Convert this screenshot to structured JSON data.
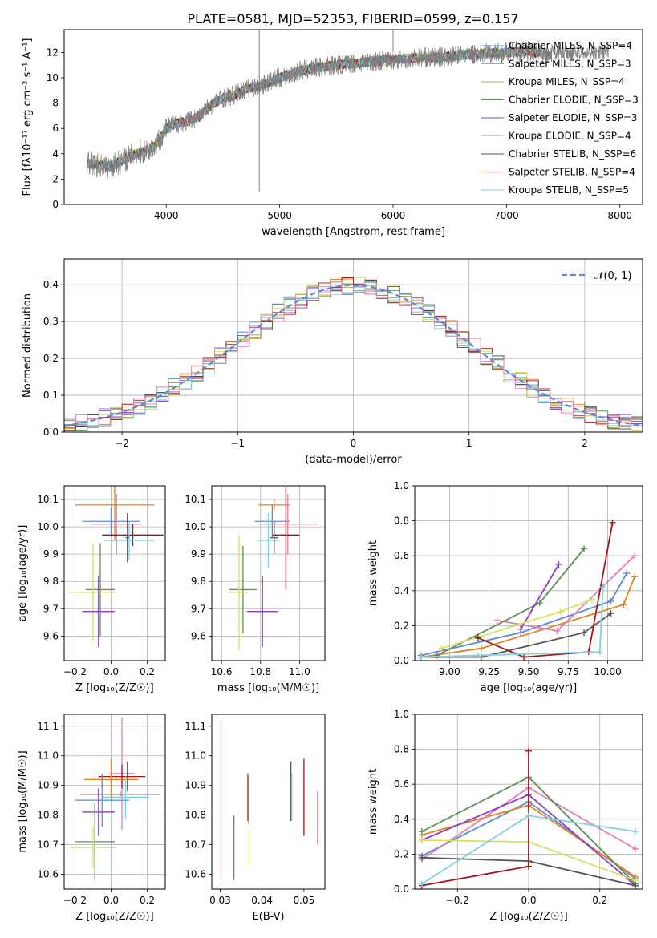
{
  "figure_title": "PLATE=0581, MJD=52353, FIBERID=0599, z=0.157",
  "series_colors": [
    "#5b8bd6",
    "#e8821e",
    "#c8a040",
    "#5f8f5f",
    "#8e3fbf",
    "#d8e060",
    "#555555",
    "#a01818",
    "#80d0e0",
    "#e27fb5"
  ],
  "chart_data": [
    {
      "id": "spectrum",
      "type": "line",
      "title": "PLATE=0581, MJD=52353, FIBERID=0599, z=0.157",
      "xlabel": "wavelength [Angstrom, rest frame]",
      "ylabel": "Flux [fλ10⁻¹⁷ erg cm⁻² s⁻¹ A⁻¹]",
      "xlim": [
        3100,
        8200
      ],
      "ylim": [
        0,
        13.8
      ],
      "xticks": [
        4000,
        5000,
        6000,
        7000,
        8000
      ],
      "yticks": [
        0,
        2,
        4,
        6,
        8,
        10,
        12
      ],
      "legend_position": "top-right",
      "data_color": "#808080",
      "data": {
        "x": [
          3300,
          3400,
          3500,
          3600,
          3700,
          3800,
          3900,
          4000,
          4100,
          4200,
          4300,
          4400,
          4500,
          4600,
          4700,
          4800,
          4900,
          5000,
          5200,
          5400,
          5600,
          5800,
          6000,
          6200,
          6400,
          6600,
          6800,
          7000,
          7200,
          7400
        ],
        "y": [
          3.3,
          3.1,
          3.0,
          3.4,
          3.9,
          4.2,
          4.6,
          6.0,
          6.4,
          6.6,
          7.0,
          7.9,
          8.4,
          8.6,
          9.1,
          9.3,
          9.6,
          10.0,
          10.6,
          10.9,
          11.1,
          11.3,
          11.4,
          11.6,
          11.6,
          11.8,
          11.9,
          12.0,
          12.1,
          11.7
        ]
      },
      "series": [
        {
          "name": "Chabrier MILES, N_SSP=4",
          "color": "#5b8bd6"
        },
        {
          "name": "Salpeter MILES, N_SSP=3",
          "color": "#e27fb5"
        },
        {
          "name": "Kroupa MILES, N_SSP=4",
          "color": "#c8a040"
        },
        {
          "name": "Chabrier ELODIE, N_SSP=3",
          "color": "#5f8f5f"
        },
        {
          "name": "Salpeter ELODIE, N_SSP=3",
          "color": "#8e3fbf"
        },
        {
          "name": "Kroupa ELODIE, N_SSP=4",
          "color": "#d8e060"
        },
        {
          "name": "Chabrier STELIB, N_SSP=6",
          "color": "#555555"
        },
        {
          "name": "Salpeter STELIB, N_SSP=4",
          "color": "#a01818"
        },
        {
          "name": "Kroupa STELIB, N_SSP=5",
          "color": "#80d0e0"
        }
      ]
    },
    {
      "id": "residuals",
      "type": "histogram",
      "xlabel": "(data-model)/error",
      "ylabel": "Normed distribution",
      "xlim": [
        -2.5,
        2.5
      ],
      "ylim": [
        0,
        0.47
      ],
      "xticks": [
        -2,
        -1,
        0,
        1,
        2
      ],
      "yticks": [
        0.0,
        0.1,
        0.2,
        0.3,
        0.4
      ],
      "grid": true,
      "bin_edges_start": -2.5,
      "bin_width": 0.1,
      "bins": 50,
      "gaussian": {
        "label": "𝒩(0, 1)",
        "color": "#5b8bd6",
        "mu": 0,
        "sigma": 1
      },
      "legend_position": "top-right"
    },
    {
      "id": "age_vs_Z",
      "type": "errorbar",
      "xlabel": "Z [log₁₀(Z/Z☉)]",
      "ylabel": "age  [log₁₀(age/yr)]",
      "xlim": [
        -0.26,
        0.3
      ],
      "ylim": [
        9.51,
        10.15
      ],
      "xticks": [
        -0.2,
        0.0,
        0.2
      ],
      "yticks": [
        9.6,
        9.7,
        9.8,
        9.9,
        10.0,
        10.1
      ],
      "grid": true,
      "points": [
        {
          "x": 0.02,
          "y": 10.08,
          "xerr": 0.22,
          "yerr": 0.13,
          "color": "#e8821e"
        },
        {
          "x": 0.0,
          "y": 10.02,
          "xerr": 0.16,
          "yerr": 0.05,
          "color": "#5b8bd6"
        },
        {
          "x": 0.03,
          "y": 10.01,
          "xerr": 0.14,
          "yerr": 0.11,
          "color": "#e27fb5"
        },
        {
          "x": 0.12,
          "y": 9.97,
          "xerr": 0.17,
          "yerr": 0.04,
          "color": "#a01818"
        },
        {
          "x": 0.1,
          "y": 9.95,
          "xerr": 0.14,
          "yerr": 0.07,
          "color": "#80d0e0"
        },
        {
          "x": 0.09,
          "y": 9.96,
          "xerr": 0.01,
          "yerr": 0.09,
          "color": "#555555"
        },
        {
          "x": -0.06,
          "y": 9.77,
          "xerr": 0.08,
          "yerr": 0.17,
          "color": "#5f8f5f"
        },
        {
          "x": -0.1,
          "y": 9.76,
          "xerr": 0.13,
          "yerr": 0.18,
          "color": "#d8e060"
        },
        {
          "x": -0.07,
          "y": 9.69,
          "xerr": 0.09,
          "yerr": 0.13,
          "color": "#8e3fbf"
        }
      ]
    },
    {
      "id": "age_vs_mass",
      "type": "errorbar",
      "xlabel": "mass [log₁₀(M/M☉)]",
      "ylabel": "",
      "xlim": [
        10.55,
        11.13
      ],
      "ylim": [
        9.51,
        10.15
      ],
      "xticks": [
        10.6,
        10.8,
        11.0
      ],
      "yticks": [
        9.6,
        9.7,
        9.8,
        9.9,
        10.0,
        10.1
      ],
      "grid": true,
      "points": [
        {
          "x": 10.87,
          "y": 10.08,
          "xerr": 0.08,
          "yerr": 0.02,
          "color": "#e8821e"
        },
        {
          "x": 10.86,
          "y": 10.02,
          "xerr": 0.09,
          "yerr": 0.06,
          "color": "#5b8bd6"
        },
        {
          "x": 10.94,
          "y": 10.01,
          "xerr": 0.15,
          "yerr": 0.11,
          "color": "#e27fb5"
        },
        {
          "x": 10.93,
          "y": 9.97,
          "xerr": 0.07,
          "yerr": 0.2,
          "color": "#a01818"
        },
        {
          "x": 10.84,
          "y": 9.95,
          "xerr": 0.06,
          "yerr": 0.1,
          "color": "#80d0e0"
        },
        {
          "x": 10.87,
          "y": 9.96,
          "xerr": 0.02,
          "yerr": 0.06,
          "color": "#555555"
        },
        {
          "x": 10.71,
          "y": 9.77,
          "xerr": 0.07,
          "yerr": 0.16,
          "color": "#5f8f5f"
        },
        {
          "x": 10.69,
          "y": 9.76,
          "xerr": 0.05,
          "yerr": 0.21,
          "color": "#d8e060"
        },
        {
          "x": 10.81,
          "y": 9.69,
          "xerr": 0.08,
          "yerr": 0.13,
          "color": "#8e3fbf"
        }
      ]
    },
    {
      "id": "weight_vs_age",
      "type": "line",
      "xlabel": "age  [log₁₀(age/yr)]",
      "ylabel": "mass weight",
      "xlim": [
        8.78,
        10.22
      ],
      "ylim": [
        0,
        1.0
      ],
      "xticks": [
        9.0,
        9.25,
        9.5,
        9.75,
        10.0
      ],
      "yticks": [
        0.0,
        0.2,
        0.4,
        0.6,
        0.8,
        1.0
      ],
      "grid": true,
      "series": [
        {
          "color": "#5b8bd6",
          "x": [
            8.82,
            9.45,
            10.02,
            10.12
          ],
          "y": [
            0.03,
            0.16,
            0.34,
            0.5
          ]
        },
        {
          "color": "#e8821e",
          "x": [
            8.82,
            9.2,
            10.1,
            10.17
          ],
          "y": [
            0.02,
            0.07,
            0.32,
            0.48
          ]
        },
        {
          "color": "#e27fb5",
          "x": [
            9.3,
            9.68,
            10.17
          ],
          "y": [
            0.23,
            0.17,
            0.6
          ]
        },
        {
          "color": "#5f8f5f",
          "x": [
            8.92,
            9.57,
            9.85
          ],
          "y": [
            0.03,
            0.33,
            0.64
          ]
        },
        {
          "color": "#8e3fbf",
          "x": [
            9.45,
            9.69
          ],
          "y": [
            0.18,
            0.55
          ]
        },
        {
          "color": "#d8e060",
          "x": [
            8.95,
            9.7,
            9.9
          ],
          "y": [
            0.07,
            0.28,
            0.35
          ]
        },
        {
          "color": "#555555",
          "x": [
            8.82,
            9.2,
            9.85,
            10.02
          ],
          "y": [
            0.02,
            0.02,
            0.16,
            0.27
          ]
        },
        {
          "color": "#a01818",
          "x": [
            9.18,
            9.47,
            9.88,
            10.03
          ],
          "y": [
            0.13,
            0.02,
            0.05,
            0.79
          ]
        },
        {
          "color": "#80d0e0",
          "x": [
            8.82,
            9.18,
            9.95,
            9.97
          ],
          "y": [
            0.02,
            0.03,
            0.05,
            0.42
          ]
        }
      ]
    },
    {
      "id": "mass_vs_Z",
      "type": "errorbar",
      "xlabel": "Z [log₁₀(Z/Z☉)]",
      "ylabel": "mass [log₁₀(M/M☉)]",
      "xlim": [
        -0.26,
        0.3
      ],
      "ylim": [
        10.55,
        11.14
      ],
      "xticks": [
        -0.2,
        0.0,
        0.2
      ],
      "yticks": [
        10.6,
        10.7,
        10.8,
        10.9,
        11.0,
        11.1
      ],
      "grid": true,
      "points": [
        {
          "x": 0.06,
          "y": 10.94,
          "xerr": 0.07,
          "yerr": 0.19,
          "color": "#e27fb5"
        },
        {
          "x": 0.09,
          "y": 10.93,
          "xerr": 0.01,
          "yerr": 0.05,
          "color": "#555555"
        },
        {
          "x": 0.06,
          "y": 10.93,
          "xerr": 0.13,
          "yerr": 0.04,
          "color": "#a01818"
        },
        {
          "x": 0.0,
          "y": 10.92,
          "xerr": 0.15,
          "yerr": 0.07,
          "color": "#e8821e"
        },
        {
          "x": 0.05,
          "y": 10.87,
          "xerr": 0.22,
          "yerr": 0.01,
          "color": "#555555"
        },
        {
          "x": 0.08,
          "y": 10.86,
          "xerr": 0.13,
          "yerr": 0.07,
          "color": "#80d0e0"
        },
        {
          "x": -0.05,
          "y": 10.85,
          "xerr": 0.15,
          "yerr": 0.09,
          "color": "#5b8bd6"
        },
        {
          "x": -0.07,
          "y": 10.81,
          "xerr": 0.09,
          "yerr": 0.08,
          "color": "#8e3fbf"
        },
        {
          "x": -0.09,
          "y": 10.71,
          "xerr": 0.11,
          "yerr": 0.13,
          "color": "#5f8f5f"
        },
        {
          "x": -0.1,
          "y": 10.69,
          "xerr": 0.13,
          "yerr": 0.07,
          "color": "#d8e060"
        }
      ]
    },
    {
      "id": "mass_vs_ebv",
      "type": "errorbar",
      "xlabel": "E(B-V)",
      "ylabel": "",
      "xlim": [
        0.028,
        0.055
      ],
      "ylim": [
        10.55,
        11.14
      ],
      "xticks": [
        0.03,
        0.04,
        0.05
      ],
      "yticks": [
        10.6,
        10.7,
        10.8,
        10.9,
        11.0,
        11.1
      ],
      "grid": false,
      "points": [
        {
          "x": 0.0302,
          "y": 10.85,
          "yerr": 0.27,
          "color": "#e27fb5"
        },
        {
          "x": 0.0333,
          "y": 10.69,
          "yerr": 0.11,
          "color": "#5f8f5f"
        },
        {
          "x": 0.0366,
          "y": 10.86,
          "yerr": 0.08,
          "color": "#555555"
        },
        {
          "x": 0.0368,
          "y": 10.85,
          "yerr": 0.08,
          "color": "#e8821e"
        },
        {
          "x": 0.0369,
          "y": 10.69,
          "yerr": 0.06,
          "color": "#d8e060"
        },
        {
          "x": 0.0469,
          "y": 10.88,
          "yerr": 0.1,
          "color": "#555555"
        },
        {
          "x": 0.0471,
          "y": 10.86,
          "yerr": 0.08,
          "color": "#80d0e0"
        },
        {
          "x": 0.05,
          "y": 10.86,
          "yerr": 0.13,
          "color": "#a01818"
        },
        {
          "x": 0.0533,
          "y": 10.79,
          "yerr": 0.09,
          "color": "#8e3fbf"
        }
      ]
    },
    {
      "id": "weight_vs_Z",
      "type": "line",
      "xlabel": "Z [log₁₀(Z/Z☉)]",
      "ylabel": "mass weight",
      "xlim": [
        -0.32,
        0.32
      ],
      "ylim": [
        0,
        1.0
      ],
      "xticks": [
        -0.2,
        0.0,
        0.2
      ],
      "yticks": [
        0.0,
        0.2,
        0.4,
        0.6,
        0.8,
        1.0
      ],
      "grid": true,
      "series": [
        {
          "color": "#5b8bd6",
          "x": [
            -0.3,
            0.0,
            0.3
          ],
          "y": [
            0.19,
            0.5,
            0.06
          ]
        },
        {
          "color": "#e8821e",
          "x": [
            -0.3,
            0.0,
            0.3
          ],
          "y": [
            0.31,
            0.48,
            0.07
          ]
        },
        {
          "color": "#e27fb5",
          "x": [
            -0.3,
            0.0,
            0.3
          ],
          "y": [
            0.17,
            0.58,
            0.23
          ]
        },
        {
          "color": "#5f8f5f",
          "x": [
            -0.3,
            0.0,
            0.3
          ],
          "y": [
            0.33,
            0.64,
            0.03
          ]
        },
        {
          "color": "#8e3fbf",
          "x": [
            -0.3,
            0.0,
            0.3
          ],
          "y": [
            0.28,
            0.54,
            0.02
          ]
        },
        {
          "color": "#d8e060",
          "x": [
            -0.3,
            0.0,
            0.3
          ],
          "y": [
            0.28,
            0.27,
            0.05
          ]
        },
        {
          "color": "#555555",
          "x": [
            -0.3,
            0.0,
            0.3
          ],
          "y": [
            0.18,
            0.16,
            0.02
          ]
        },
        {
          "color": "#a01818",
          "x": [
            -0.3,
            0.0,
            0.0
          ],
          "y": [
            0.02,
            0.13,
            0.79
          ]
        },
        {
          "color": "#80d0e0",
          "x": [
            -0.3,
            0.0,
            0.3
          ],
          "y": [
            0.03,
            0.42,
            0.33
          ]
        }
      ]
    }
  ]
}
